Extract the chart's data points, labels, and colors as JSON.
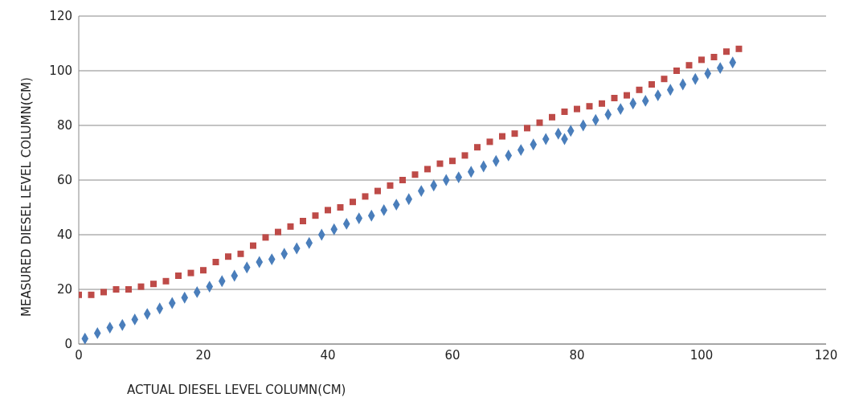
{
  "chart_data": {
    "type": "scatter",
    "xlabel": "ACTUAL DIESEL LEVEL COLUMN(CM)",
    "ylabel": "MEASURED DIESEL LEVEL COLUMN(CM)",
    "xlim": [
      0,
      120
    ],
    "xticks": [
      0,
      20,
      40,
      60,
      80,
      100,
      120
    ],
    "ylim": [
      0,
      120
    ],
    "yticks": [
      0,
      20,
      40,
      60,
      80,
      100,
      120
    ],
    "grid": "y",
    "series": [
      {
        "color": "#4a7ebb",
        "marker": "diamond",
        "x": [
          1,
          3,
          5,
          7,
          9,
          11,
          13,
          15,
          17,
          19,
          21,
          23,
          25,
          27,
          29,
          31,
          33,
          35,
          37,
          39,
          41,
          43,
          45,
          47,
          49,
          51,
          53,
          55,
          57,
          59,
          61,
          63,
          65,
          67,
          69,
          71,
          73,
          75,
          77,
          78,
          79,
          81,
          83,
          85,
          87,
          89,
          91,
          93,
          95,
          97,
          99,
          101,
          103,
          105
        ],
        "values": [
          2,
          4,
          6,
          7,
          9,
          11,
          13,
          15,
          17,
          19,
          21,
          23,
          25,
          28,
          30,
          31,
          33,
          35,
          37,
          40,
          42,
          44,
          46,
          47,
          49,
          51,
          53,
          56,
          58,
          60,
          61,
          63,
          65,
          67,
          69,
          71,
          73,
          75,
          77,
          75,
          78,
          80,
          82,
          84,
          86,
          88,
          89,
          91,
          93,
          95,
          97,
          99,
          101,
          103
        ]
      },
      {
        "color": "#be4b48",
        "marker": "square",
        "x": [
          0,
          2,
          4,
          6,
          8,
          10,
          12,
          14,
          16,
          18,
          20,
          22,
          24,
          26,
          28,
          30,
          32,
          34,
          36,
          38,
          40,
          42,
          44,
          46,
          48,
          50,
          52,
          54,
          56,
          58,
          60,
          62,
          64,
          66,
          68,
          70,
          72,
          74,
          76,
          78,
          80,
          82,
          84,
          86,
          88,
          90,
          92,
          94,
          96,
          98,
          100,
          102,
          104,
          106
        ],
        "values": [
          18,
          18,
          19,
          20,
          20,
          21,
          22,
          23,
          25,
          26,
          27,
          30,
          32,
          33,
          36,
          39,
          41,
          43,
          45,
          47,
          49,
          50,
          52,
          54,
          56,
          58,
          60,
          62,
          64,
          66,
          67,
          69,
          72,
          74,
          76,
          77,
          79,
          81,
          83,
          85,
          86,
          87,
          88,
          90,
          91,
          93,
          95,
          97,
          100,
          102,
          104,
          105,
          107,
          108
        ]
      }
    ]
  }
}
